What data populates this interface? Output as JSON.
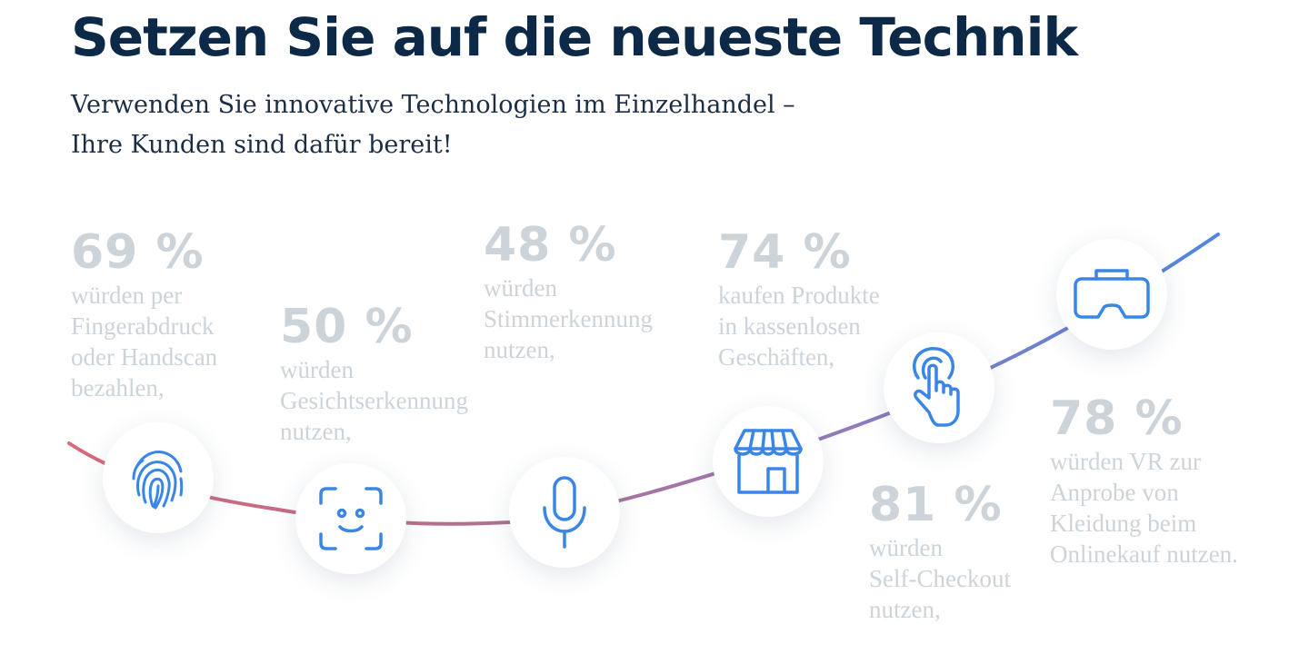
{
  "page": {
    "title": "Setzen Sie auf die neueste Technik",
    "subtitle_line1": "Verwenden Sie innovative Technologien im Einzelhandel –",
    "subtitle_line2": "Ihre Kunden sind dafür bereit!"
  },
  "colors": {
    "title": "#0c2a47",
    "stat_text": "#ccd3d9",
    "icon_blue": "#3a86e6",
    "curve_start": "#d86a7c",
    "curve_mid": "#9b79b4",
    "curve_end": "#4c86e2"
  },
  "stats": [
    {
      "value": "69 %",
      "icon": "fingerprint-icon",
      "lines": [
        "würden per",
        "Fingerabdruck",
        "oder Handscan",
        "bezahlen,"
      ]
    },
    {
      "value": "50 %",
      "icon": "face-scan-icon",
      "lines": [
        "würden",
        "Gesichtserkennung",
        "nutzen,"
      ]
    },
    {
      "value": "48 %",
      "icon": "microphone-icon",
      "lines": [
        "würden",
        "Stimmerkennung",
        "nutzen,"
      ]
    },
    {
      "value": "74 %",
      "icon": "storefront-icon",
      "lines": [
        "kaufen Produkte",
        "in kassenlosen",
        "Geschäften,"
      ]
    },
    {
      "value": "81 %",
      "icon": "touch-hand-icon",
      "lines": [
        "würden",
        "Self-Checkout",
        "nutzen,"
      ]
    },
    {
      "value": "78 %",
      "icon": "vr-headset-icon",
      "lines": [
        "würden VR zur",
        "Anprobe von",
        "Kleidung beim",
        "Onlinekauf nutzen."
      ]
    }
  ]
}
